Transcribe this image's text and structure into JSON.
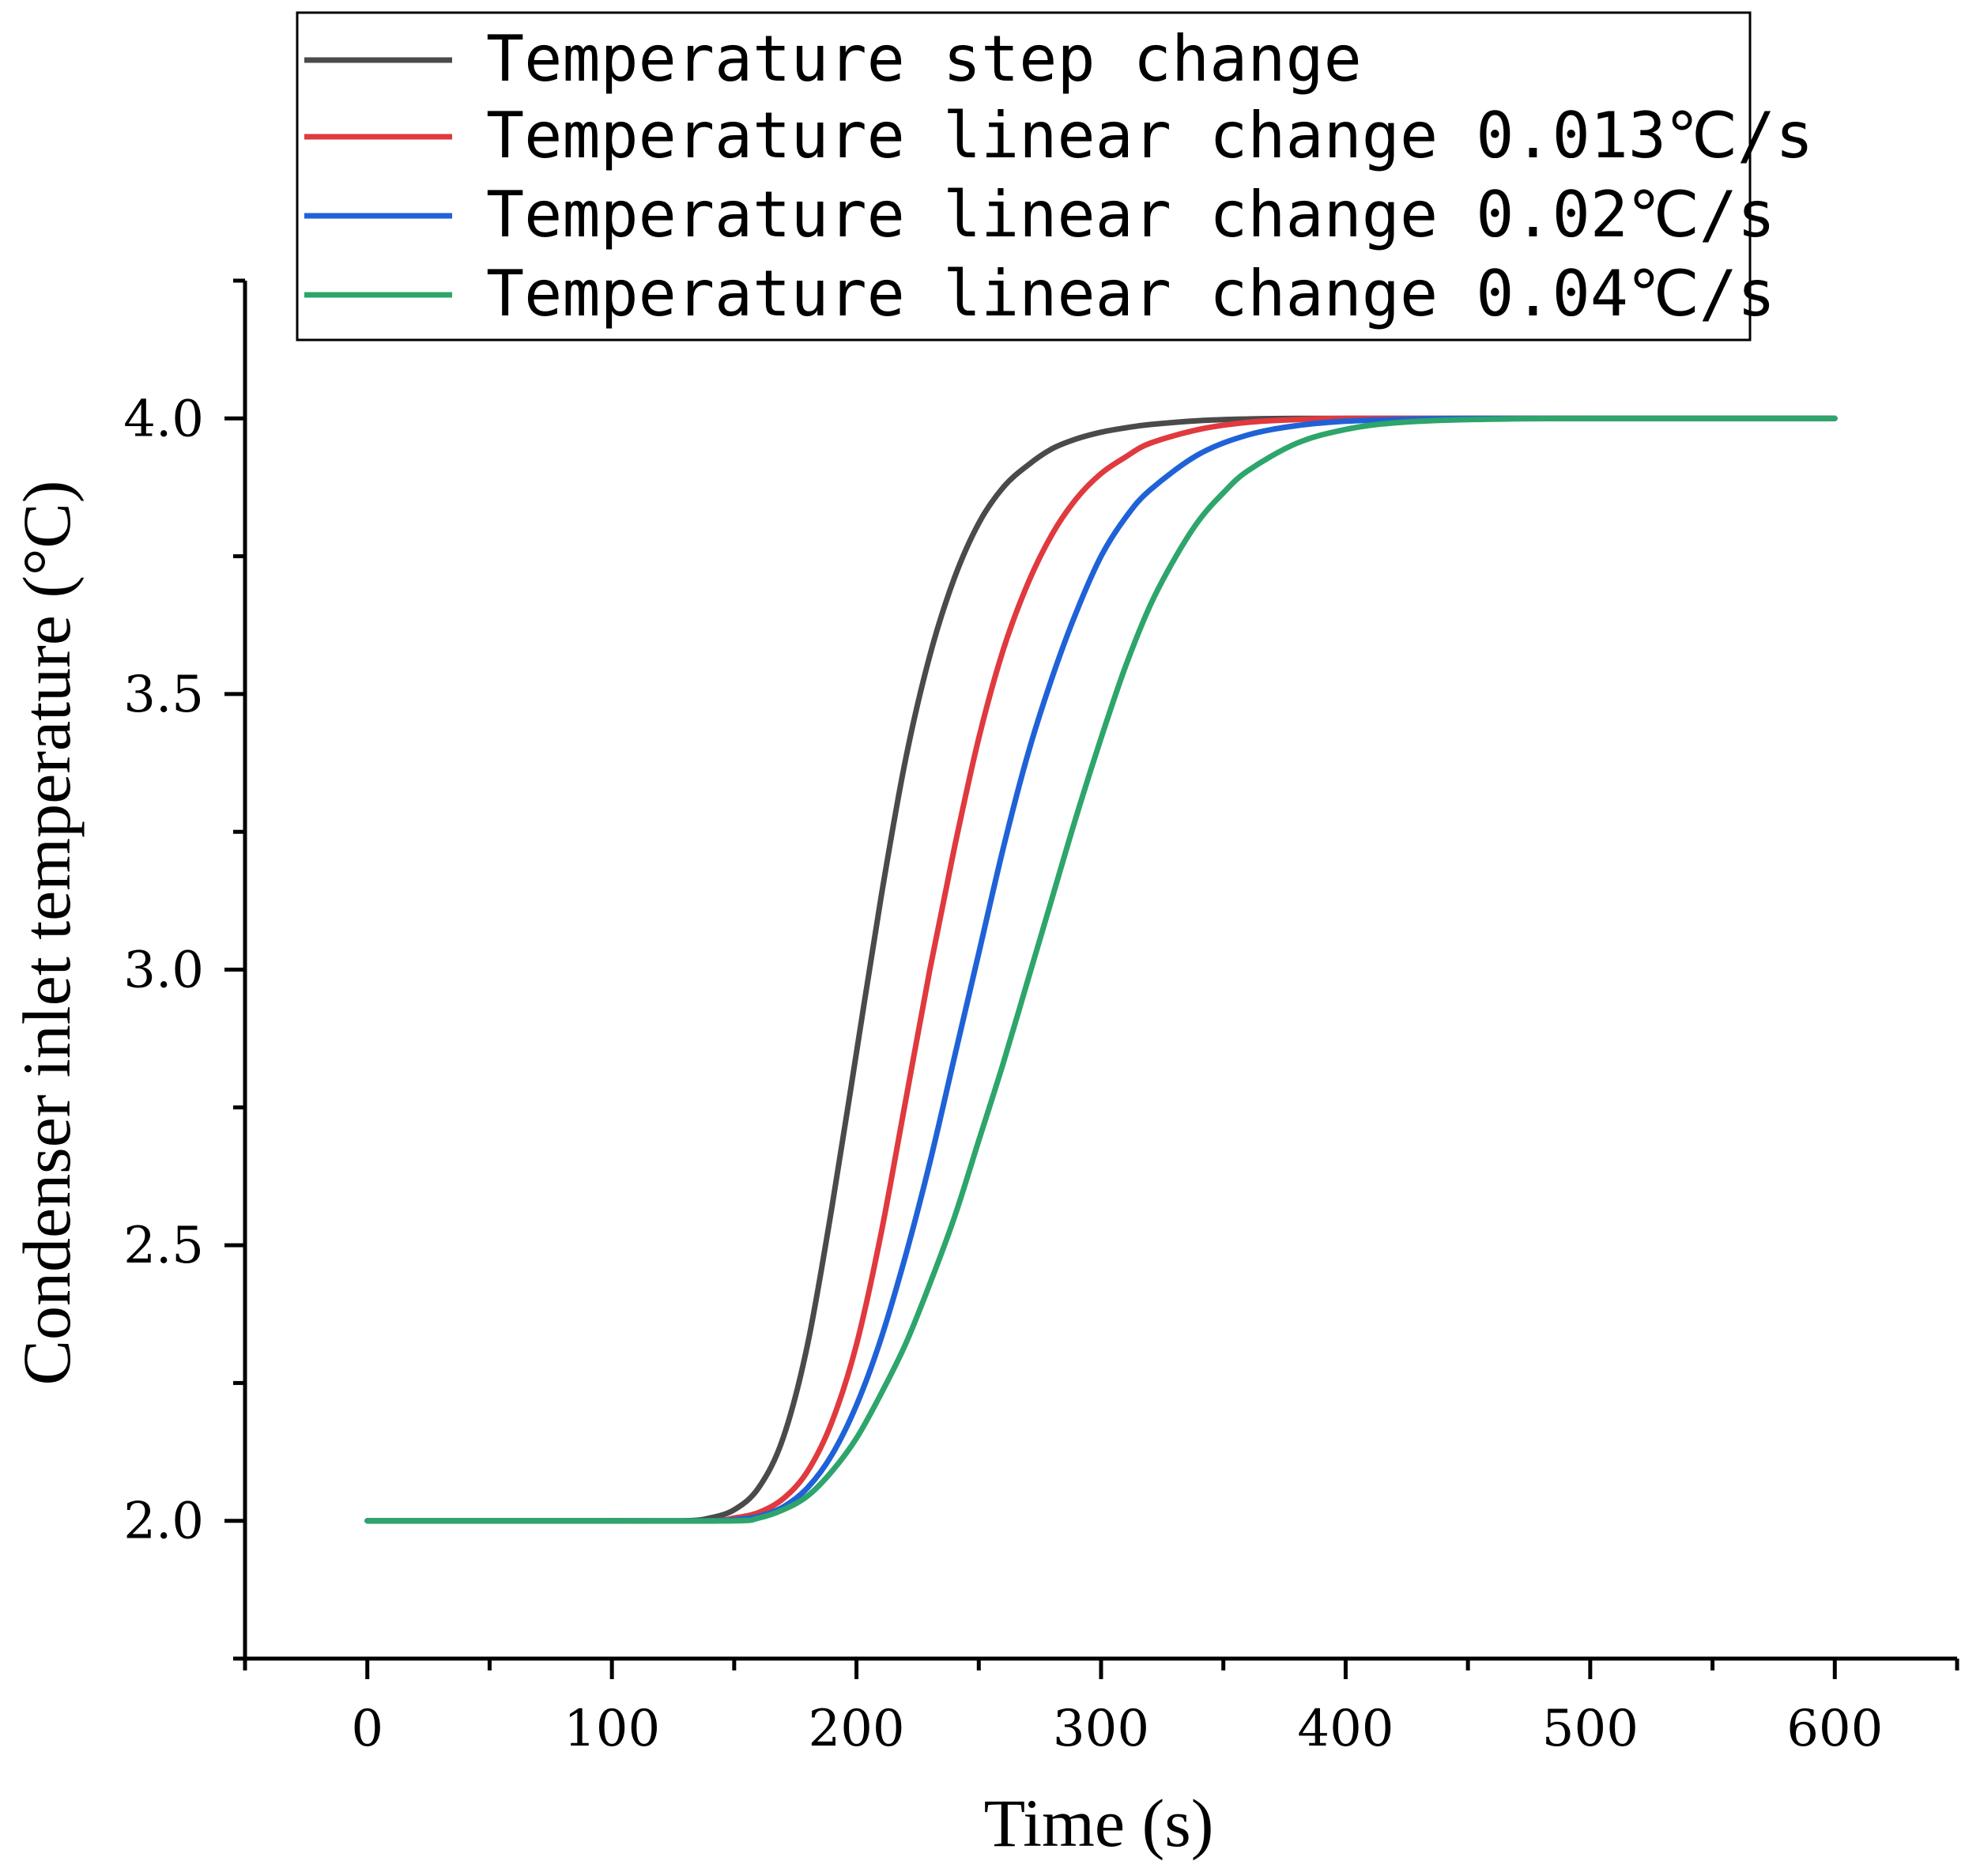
{
  "chart_data": {
    "type": "line",
    "title": "",
    "xlabel": "Time (s)",
    "ylabel": "Condenser inlet temperature (°C)",
    "xlim": [
      -50,
      650
    ],
    "ylim": [
      1.75,
      4.25
    ],
    "xticks": [
      0,
      100,
      200,
      300,
      400,
      500,
      600
    ],
    "xtick_labels": [
      "0",
      "100",
      "200",
      "300",
      "400",
      "500",
      "600"
    ],
    "xminor": [
      -50,
      50,
      150,
      250,
      350,
      450,
      550,
      650
    ],
    "yticks": [
      2.0,
      2.5,
      3.0,
      3.5,
      4.0
    ],
    "ytick_labels": [
      "2.0",
      "2.5",
      "3.0",
      "3.5",
      "4.0"
    ],
    "yminor": [
      1.75,
      2.25,
      2.75,
      3.25,
      3.75,
      4.25
    ],
    "grid": false,
    "legend_position": "top",
    "series": [
      {
        "name": "Temperature step change",
        "color": "#4a4a4a",
        "x": [
          0,
          100,
          130,
          140,
          150,
          160,
          170,
          180,
          190,
          200,
          210,
          220,
          230,
          240,
          250,
          260,
          270,
          280,
          290,
          300,
          310,
          320,
          340,
          360,
          380,
          400,
          450,
          500,
          600
        ],
        "y": [
          2.0,
          2.0,
          2.0,
          2.005,
          2.02,
          2.06,
          2.15,
          2.32,
          2.57,
          2.85,
          3.13,
          3.38,
          3.57,
          3.71,
          3.81,
          3.875,
          3.915,
          3.945,
          3.963,
          3.975,
          3.983,
          3.989,
          3.996,
          3.999,
          4.0,
          4.0,
          4.0,
          4.0,
          4.0
        ]
      },
      {
        "name": "Temperature linear change 0.013℃/s",
        "color": "#e0393e",
        "x": [
          0,
          100,
          140,
          150,
          160,
          170,
          180,
          190,
          200,
          210,
          220,
          230,
          240,
          250,
          260,
          270,
          280,
          290,
          300,
          310,
          320,
          340,
          360,
          380,
          400,
          450,
          500,
          600
        ],
        "y": [
          2.0,
          2.0,
          2.0,
          2.005,
          2.015,
          2.04,
          2.09,
          2.18,
          2.32,
          2.52,
          2.76,
          3.0,
          3.22,
          3.42,
          3.58,
          3.7,
          3.79,
          3.855,
          3.9,
          3.93,
          3.955,
          3.98,
          3.993,
          3.998,
          4.0,
          4.0,
          4.0,
          4.0
        ]
      },
      {
        "name": "Temperature linear change 0.02℃/s",
        "color": "#1f62d8",
        "x": [
          0,
          100,
          140,
          150,
          160,
          170,
          180,
          190,
          200,
          210,
          220,
          230,
          240,
          250,
          260,
          270,
          280,
          290,
          300,
          310,
          320,
          340,
          360,
          380,
          400,
          420,
          450,
          500,
          600
        ],
        "y": [
          2.0,
          2.0,
          2.0,
          2.002,
          2.008,
          2.025,
          2.06,
          2.12,
          2.21,
          2.33,
          2.48,
          2.65,
          2.84,
          3.03,
          3.22,
          3.39,
          3.53,
          3.65,
          3.75,
          3.82,
          3.87,
          3.935,
          3.97,
          3.987,
          3.995,
          3.998,
          4.0,
          4.0,
          4.0
        ]
      },
      {
        "name": "Temperature linear change 0.04℃/s",
        "color": "#2da56b",
        "x": [
          0,
          100,
          150,
          160,
          170,
          180,
          190,
          200,
          210,
          220,
          230,
          240,
          250,
          260,
          270,
          280,
          290,
          300,
          310,
          320,
          330,
          340,
          350,
          360,
          380,
          400,
          420,
          450,
          500,
          600
        ],
        "y": [
          2.0,
          2.0,
          2.0,
          2.005,
          2.02,
          2.045,
          2.09,
          2.15,
          2.23,
          2.32,
          2.43,
          2.55,
          2.69,
          2.83,
          2.98,
          3.13,
          3.28,
          3.42,
          3.55,
          3.66,
          3.745,
          3.815,
          3.865,
          3.905,
          3.955,
          3.98,
          3.992,
          3.998,
          4.0,
          4.0
        ]
      }
    ]
  }
}
